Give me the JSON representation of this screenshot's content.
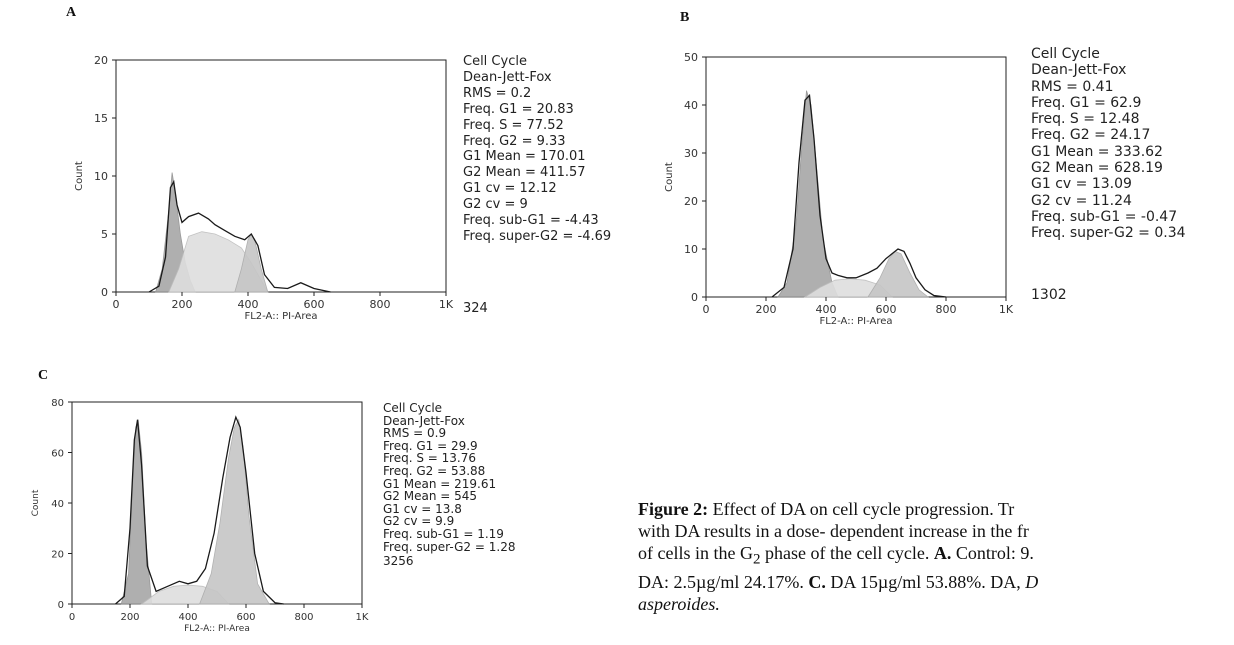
{
  "panels": [
    {
      "letter": "A",
      "title_lines": [
        "Cell Cycle",
        "Dean-Jett-Fox"
      ],
      "stats": [
        "RMS = 0.2",
        "Freq. G1 = 20.83",
        "Freq. S = 77.52",
        "Freq. G2 = 9.33",
        "G1 Mean = 170.01",
        "G2 Mean = 411.57",
        "G1 cv = 12.12",
        "G2 cv = 9",
        "Freq. sub-G1 = -4.43",
        "Freq. super-G2 = -4.69"
      ],
      "events": "324"
    },
    {
      "letter": "B",
      "title_lines": [
        "Cell Cycle",
        "Dean-Jett-Fox"
      ],
      "stats": [
        "RMS = 0.41",
        "Freq. G1 = 62.9",
        "Freq. S = 12.48",
        "Freq. G2 = 24.17",
        "G1 Mean = 333.62",
        "G2 Mean = 628.19",
        "G1 cv = 13.09",
        "G2 cv = 11.24",
        "Freq. sub-G1 = -0.47",
        "Freq. super-G2 = 0.34"
      ],
      "events": "1302"
    },
    {
      "letter": "C",
      "title_lines": [
        "Cell Cycle",
        "Dean-Jett-Fox"
      ],
      "stats": [
        "RMS = 0.9",
        "Freq. G1 = 29.9",
        "Freq. S = 13.76",
        "Freq. G2 = 53.88",
        "G1 Mean = 219.61",
        "G2 Mean = 545",
        "G1 cv = 13.8",
        "G2 cv = 9.9",
        "Freq. sub-G1 = 1.19",
        "Freq. super-G2 = 1.28"
      ],
      "events": "3256"
    }
  ],
  "caption": {
    "label": "Figure 2:",
    "line1": " Effect of DA on cell cycle progression. Tr",
    "line2": "with DA results in a dose- dependent increase in the fr",
    "line3_pre": "of cells in the G",
    "line3_sub": "2",
    "line3_post": " phase of the cell cycle. ",
    "line3_bold": "A.",
    "line3_end": " Control: 9.",
    "line4_pre": "DA: 2.5µg/ml 24.17%. ",
    "line4_bold": "C.",
    "line4_mid": " DA 15µg/ml 53.88%. DA, ",
    "line4_italic": "D",
    "line5_italic": "asperoides."
  },
  "chart_data": [
    {
      "type": "area",
      "panel": "A",
      "xlabel": "FL2-A:: PI-Area",
      "ylabel": "Count",
      "xlim": [
        0,
        1000
      ],
      "ylim": [
        0,
        20
      ],
      "x_ticks": [
        0,
        200,
        400,
        600,
        800,
        1000
      ],
      "x_tick_labels": [
        "0",
        "200",
        "400",
        "600",
        "800",
        "1K"
      ],
      "y_ticks": [
        0,
        5,
        10,
        15,
        20
      ],
      "y_tick_labels": [
        "0",
        "5",
        "10",
        "15",
        "20"
      ],
      "series": [
        {
          "name": "G1",
          "x": [
            120,
            140,
            160,
            170,
            180,
            195,
            210,
            225,
            240
          ],
          "y": [
            0,
            2,
            7,
            10.3,
            8.5,
            5,
            2.5,
            1,
            0
          ]
        },
        {
          "name": "S",
          "x": [
            160,
            190,
            220,
            260,
            300,
            340,
            380,
            410,
            440,
            460
          ],
          "y": [
            0,
            2,
            4.8,
            5.2,
            5,
            4.5,
            3.8,
            2.5,
            1,
            0
          ]
        },
        {
          "name": "G2",
          "x": [
            360,
            380,
            400,
            410,
            420,
            440,
            460
          ],
          "y": [
            0,
            2,
            4.5,
            5,
            4.5,
            2,
            0
          ]
        },
        {
          "x": [
            100,
            130,
            150,
            165,
            175,
            185,
            200,
            220,
            250,
            280,
            300,
            330,
            360,
            390,
            410,
            430,
            450,
            480,
            520,
            560,
            600,
            650
          ],
          "y": [
            0,
            0.5,
            3,
            9,
            9.5,
            7.5,
            6,
            6.5,
            6.8,
            6.3,
            5.8,
            5.3,
            4.8,
            4.5,
            5,
            4,
            1.5,
            0.4,
            0.3,
            0.8,
            0.3,
            0
          ]
        }
      ]
    },
    {
      "type": "area",
      "panel": "B",
      "xlabel": "FL2-A:: PI-Area",
      "ylabel": "Count",
      "xlim": [
        0,
        1000
      ],
      "ylim": [
        0,
        50
      ],
      "x_ticks": [
        0,
        200,
        400,
        600,
        800,
        1000
      ],
      "x_tick_labels": [
        "0",
        "200",
        "400",
        "600",
        "800",
        "1K"
      ],
      "y_ticks": [
        0,
        10,
        20,
        30,
        40,
        50
      ],
      "y_tick_labels": [
        "0",
        "10",
        "20",
        "30",
        "40",
        "50"
      ],
      "series": [
        {
          "name": "G1",
          "x": [
            240,
            270,
            300,
            320,
            335,
            350,
            370,
            390,
            420,
            440
          ],
          "y": [
            0,
            3,
            15,
            32,
            43,
            40,
            26,
            12,
            3,
            0
          ]
        },
        {
          "name": "S",
          "x": [
            330,
            380,
            430,
            480,
            530,
            580,
            620
          ],
          "y": [
            0,
            2,
            3.5,
            3.8,
            3.5,
            2.5,
            0
          ]
        },
        {
          "name": "G2",
          "x": [
            540,
            580,
            610,
            630,
            650,
            680,
            710,
            740
          ],
          "y": [
            0,
            4,
            8,
            9.5,
            9,
            5,
            1.5,
            0
          ]
        },
        {
          "x": [
            220,
            260,
            290,
            310,
            330,
            345,
            360,
            380,
            400,
            420,
            440,
            470,
            500,
            540,
            570,
            600,
            620,
            640,
            660,
            680,
            700,
            730,
            760,
            800
          ],
          "y": [
            0,
            2,
            10,
            28,
            41,
            42,
            33,
            17,
            8,
            5,
            4.5,
            4,
            4,
            5,
            6,
            8,
            9,
            10,
            9.5,
            7,
            4,
            1.5,
            0.3,
            0
          ]
        }
      ]
    },
    {
      "type": "area",
      "panel": "C",
      "xlabel": "FL2-A:: PI-Area",
      "ylabel": "Count",
      "xlim": [
        0,
        1000
      ],
      "ylim": [
        0,
        80
      ],
      "x_ticks": [
        0,
        200,
        400,
        600,
        800,
        1000
      ],
      "x_tick_labels": [
        "0",
        "200",
        "400",
        "600",
        "800",
        "1K"
      ],
      "y_ticks": [
        0,
        20,
        40,
        60,
        80
      ],
      "y_tick_labels": [
        "0",
        "20",
        "40",
        "60",
        "80"
      ],
      "series": [
        {
          "name": "G1",
          "x": [
            170,
            195,
            210,
            220,
            228,
            240,
            255,
            275
          ],
          "y": [
            0,
            12,
            50,
            70,
            73,
            60,
            25,
            0
          ]
        },
        {
          "name": "S",
          "x": [
            240,
            300,
            350,
            400,
            450,
            500,
            540
          ],
          "y": [
            0,
            5,
            7,
            7.5,
            7,
            5,
            0
          ]
        },
        {
          "name": "G2",
          "x": [
            440,
            480,
            510,
            540,
            560,
            575,
            590,
            610,
            640,
            680
          ],
          "y": [
            0,
            12,
            32,
            58,
            70,
            73,
            62,
            35,
            8,
            0
          ]
        },
        {
          "x": [
            150,
            180,
            200,
            215,
            226,
            240,
            260,
            290,
            330,
            370,
            400,
            430,
            460,
            490,
            520,
            545,
            565,
            580,
            600,
            630,
            660,
            700,
            730
          ],
          "y": [
            0,
            3,
            30,
            65,
            73,
            55,
            15,
            5,
            7,
            9,
            8,
            9,
            14,
            28,
            50,
            66,
            74,
            70,
            52,
            20,
            5,
            0.5,
            0
          ]
        }
      ]
    }
  ]
}
